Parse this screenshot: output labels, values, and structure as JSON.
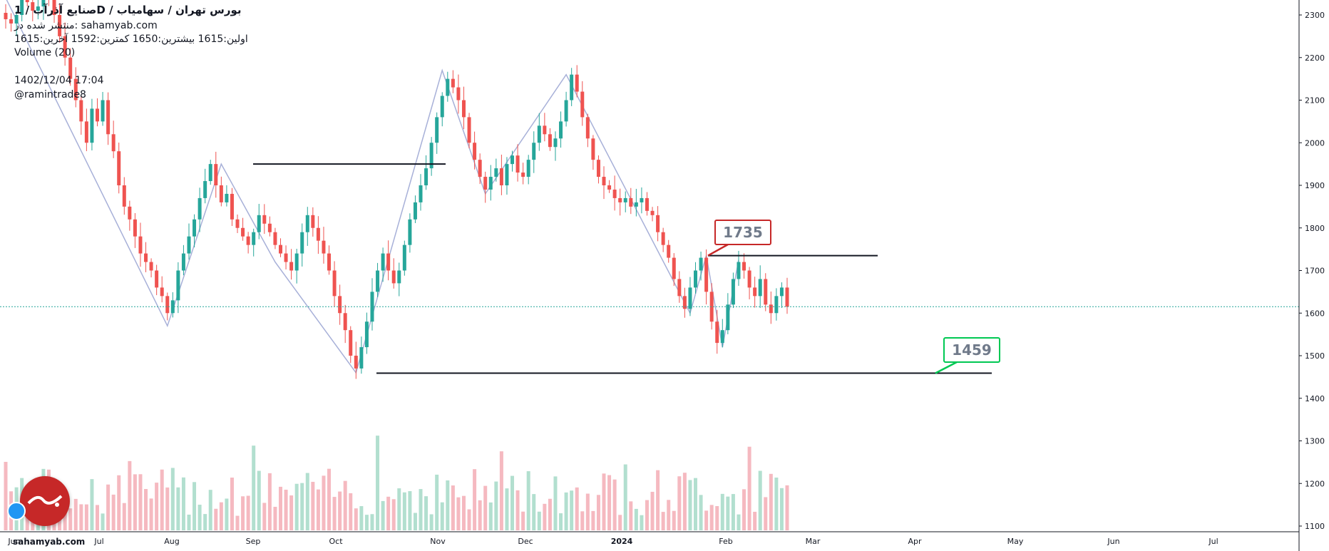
{
  "header": {
    "title": "صنایع آذرآب / 1D / بورس تهران / سهامیاب",
    "published": "منتشر شده در: sahamyab.com",
    "ohlc": "اولین:1615  بیشترین:1650  کمترین:1592  آخرین:1615",
    "volume_label": "Volume (20)",
    "datetime": "1402/12/04 17:04",
    "author": "@ramintrade8"
  },
  "watermark": {
    "site": "sahamyab.com"
  },
  "colors": {
    "up": "#26a69a",
    "down": "#ef5350",
    "vol_up": "#b2dfcf",
    "vol_down": "#f5b9c0",
    "zigzag": "#a7b0d8",
    "level": "#131722",
    "last_price_line": "#26a69a"
  },
  "chart_data": {
    "type": "candlestick",
    "y_axis": {
      "ticks": [
        2300,
        2200,
        2100,
        2000,
        1900,
        1800,
        1700,
        1600,
        1500,
        1400,
        1300,
        1200,
        1100
      ],
      "range": [
        1090,
        2335
      ],
      "last_price_label": "1615"
    },
    "x_axis": {
      "tick_labels": [
        "Jun",
        "Jul",
        "Aug",
        "Sep",
        "Oct",
        "Nov",
        "Dec",
        "2024",
        "Feb",
        "Mar",
        "Apr",
        "May",
        "Jun",
        "Jul"
      ]
    },
    "candles_close": [
      2290,
      2280,
      2300,
      2340,
      2330,
      2310,
      2320,
      2360,
      2340,
      2300,
      2250,
      2200,
      2150,
      2100,
      2050,
      2000,
      2080,
      2050,
      2100,
      2020,
      1980,
      1900,
      1850,
      1820,
      1780,
      1740,
      1720,
      1700,
      1660,
      1640,
      1600,
      1630,
      1700,
      1740,
      1780,
      1820,
      1870,
      1910,
      1950,
      1900,
      1860,
      1880,
      1820,
      1800,
      1780,
      1760,
      1790,
      1830,
      1810,
      1790,
      1760,
      1740,
      1720,
      1700,
      1740,
      1790,
      1830,
      1800,
      1770,
      1740,
      1700,
      1640,
      1600,
      1560,
      1500,
      1470,
      1520,
      1580,
      1650,
      1700,
      1740,
      1700,
      1670,
      1700,
      1760,
      1820,
      1860,
      1900,
      1940,
      2000,
      2060,
      2110,
      2150,
      2130,
      2100,
      2060,
      2000,
      1960,
      1920,
      1890,
      1920,
      1940,
      1900,
      1950,
      1970,
      1930,
      1920,
      1960,
      2000,
      2040,
      2020,
      1990,
      2010,
      2050,
      2100,
      2160,
      2120,
      2060,
      2010,
      1960,
      1920,
      1900,
      1890,
      1870,
      1860,
      1870,
      1850,
      1860,
      1870,
      1840,
      1830,
      1790,
      1760,
      1730,
      1680,
      1640,
      1610,
      1660,
      1700,
      1730,
      1650,
      1580,
      1530,
      1560,
      1620,
      1680,
      1720,
      1700,
      1660,
      1640,
      1680,
      1620,
      1600,
      1640,
      1660,
      1615
    ],
    "volume_scale": [
      0,
      140
    ],
    "levels": [
      {
        "price": 1950
      },
      {
        "price": 1735
      },
      {
        "price": 1459
      }
    ],
    "callouts": [
      {
        "text": "1735",
        "color": "#c62828"
      },
      {
        "text": "1459",
        "color": "#00c853"
      }
    ]
  }
}
